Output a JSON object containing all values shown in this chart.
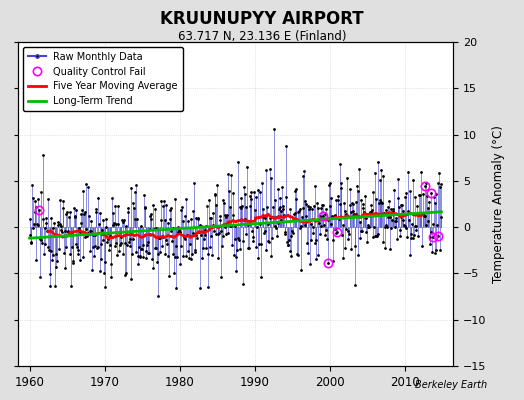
{
  "title": "KRUUNUPYY AIRPORT",
  "subtitle": "63.717 N, 23.136 E (Finland)",
  "ylabel_right": "Temperature Anomaly (°C)",
  "credit": "Berkeley Earth",
  "xlim": [
    1958.5,
    2016.5
  ],
  "ylim": [
    -15,
    20
  ],
  "yticks": [
    -15,
    -10,
    -5,
    0,
    5,
    10,
    15,
    20
  ],
  "xticks": [
    1960,
    1970,
    1980,
    1990,
    2000,
    2010
  ],
  "bg_color": "#e0e0e0",
  "plot_bg_color": "#ffffff",
  "raw_color": "#4444cc",
  "ma_color": "#ff0000",
  "trend_color": "#00bb00",
  "qc_color": "#ff00ff",
  "seed": 12345
}
